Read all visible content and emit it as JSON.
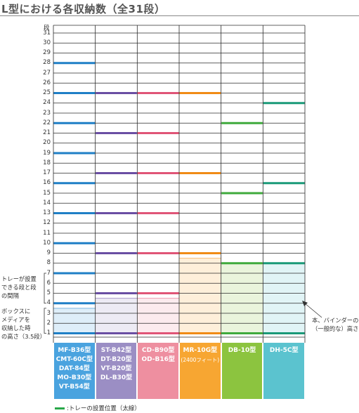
{
  "title": "L型における各収納数（全31段）",
  "axis": {
    "top_label": "段",
    "max": 31,
    "min": 1
  },
  "columns": [
    {
      "key": "mf",
      "labels": [
        "MF-B36型",
        "CMT-60C型",
        "DAT-84型",
        "MO-B30型",
        "VT-B54型"
      ],
      "color": "#4aa3df",
      "line_color": "#1f7fc6",
      "tray_levels": [
        1,
        4,
        7,
        10,
        13,
        16,
        19,
        22,
        25,
        28
      ],
      "media_band": [
        1,
        3.5
      ]
    },
    {
      "key": "st",
      "labels": [
        "ST-B42型",
        "DT-B20型",
        "VT-B20型",
        "DL-B30型"
      ],
      "color": "#9b8ec4",
      "line_color": "#6a4ea3",
      "tray_levels": [
        1,
        5,
        9,
        13,
        17,
        21,
        25
      ],
      "media_band": [
        1,
        4.5
      ]
    },
    {
      "key": "cd",
      "labels": [
        "CD-B90型",
        "OD-B16型"
      ],
      "color": "#ee8fa0",
      "line_color": "#e05577",
      "tray_levels": [
        1,
        5,
        9,
        13,
        17,
        21,
        25
      ],
      "media_band": [
        1,
        4.5
      ]
    },
    {
      "key": "mr",
      "labels": [
        "MR-10G型",
        "(2400フィート)"
      ],
      "color": "#f7a632",
      "line_color": "#f08b16",
      "tray_levels": [
        1,
        9,
        17,
        25
      ],
      "media_band": [
        1,
        8.5
      ]
    },
    {
      "key": "db",
      "labels": [
        "DB-10型"
      ],
      "color": "#8cc43f",
      "line_color": "#3faa3c",
      "tray_levels": [
        1,
        8,
        15,
        22
      ],
      "media_band": [
        1,
        8
      ]
    },
    {
      "key": "dh",
      "labels": [
        "DH-5C型"
      ],
      "color": "#5bc3cf",
      "line_color": "#1a9a78",
      "tray_levels": [
        1,
        8,
        16,
        24
      ],
      "media_band": [
        1,
        8
      ]
    }
  ],
  "notes": {
    "tray_interval": [
      "トレーが設置",
      "できる段と段",
      "の間隔"
    ],
    "media_height": [
      "ボックスに",
      "メディアを",
      "収納した時",
      "の高さ（3.5段）"
    ],
    "binder_height": [
      "本、バインダーの",
      "（一般的な）高さ"
    ]
  },
  "legend": ":トレーの設置位置（太線）"
}
